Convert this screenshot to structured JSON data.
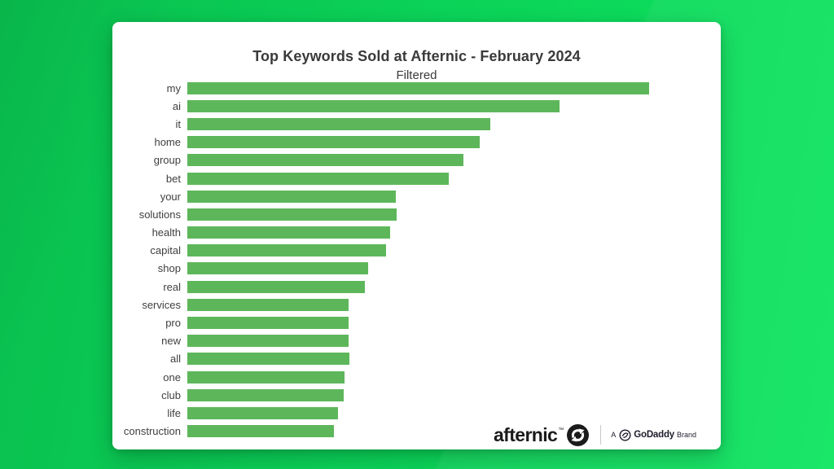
{
  "page": {
    "background_color_left": "#09bf4e",
    "background_color_right": "#0ee560",
    "card_color": "#ffffff"
  },
  "chart_data": {
    "type": "bar",
    "orientation": "horizontal",
    "title": "Top Keywords Sold at Afternic - February 2024",
    "subtitle": "Filtered",
    "categories": [
      "my",
      "ai",
      "it",
      "home",
      "group",
      "bet",
      "your",
      "solutions",
      "health",
      "capital",
      "shop",
      "real",
      "services",
      "pro",
      "new",
      "all",
      "one",
      "club",
      "life",
      "construction"
    ],
    "values": [
      100.0,
      80.6,
      65.6,
      63.3,
      59.8,
      56.6,
      45.1,
      45.3,
      43.9,
      43.0,
      39.2,
      38.4,
      34.9,
      34.9,
      34.9,
      35.1,
      34.0,
      33.9,
      32.6,
      31.7
    ],
    "value_note": "relative bar length, longest bar = 100 (no numeric axis shown in image)",
    "bar_color": "#5db75a",
    "xlabel": "",
    "ylabel": "",
    "grid": false,
    "legend": false,
    "label_color": "#3f3f3f",
    "title_color": "#3a3a3a"
  },
  "footer": {
    "brand": "afternic",
    "brand_tm": "TM",
    "byline_prefix": "A",
    "byline_brand": "GoDaddy",
    "byline_suffix": "Brand"
  }
}
